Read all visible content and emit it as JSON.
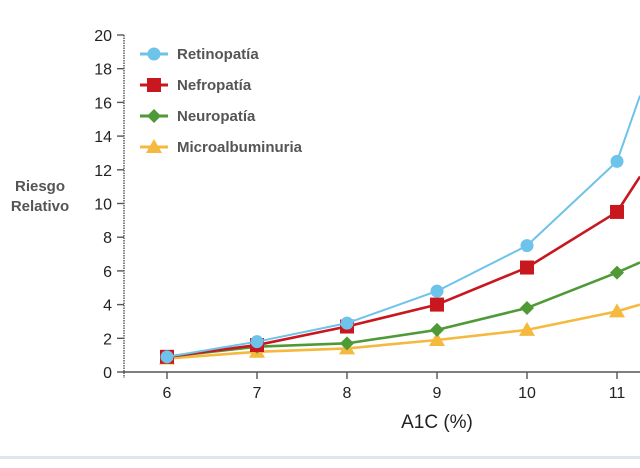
{
  "chart_data": {
    "type": "line",
    "title": "",
    "xlabel": "A1C (%)",
    "ylabel_lines": [
      "Riesgo",
      "Relativo"
    ],
    "x": [
      6,
      7,
      8,
      9,
      10,
      11
    ],
    "x_ticks": [
      "6",
      "7",
      "8",
      "9",
      "10",
      "11"
    ],
    "xlim": [
      5.5,
      11.26
    ],
    "ylim": [
      0,
      20
    ],
    "y_ticks": [
      "0",
      "2",
      "4",
      "6",
      "8",
      "10",
      "12",
      "14",
      "16",
      "18",
      "20"
    ],
    "grid": false,
    "legend_position": "top-left",
    "series": [
      {
        "name": "Retinopatía",
        "color": "#6ec3ea",
        "marker": "circle",
        "values": [
          0.9,
          1.8,
          2.9,
          4.8,
          7.5,
          12.5
        ],
        "value_at_right_edge": 16.4
      },
      {
        "name": "Nefropatía",
        "color": "#c8171e",
        "marker": "square",
        "values": [
          0.9,
          1.6,
          2.7,
          4.0,
          6.2,
          9.5
        ],
        "value_at_right_edge": 11.6
      },
      {
        "name": "Neuropatía",
        "color": "#4f9a37",
        "marker": "diamond",
        "values": [
          0.9,
          1.5,
          1.7,
          2.5,
          3.8,
          5.9
        ],
        "value_at_right_edge": 6.5
      },
      {
        "name": "Microalbuminuria",
        "color": "#f4b93e",
        "marker": "triangle",
        "values": [
          0.8,
          1.2,
          1.4,
          1.9,
          2.5,
          3.6
        ],
        "value_at_right_edge": 4.0
      }
    ]
  }
}
